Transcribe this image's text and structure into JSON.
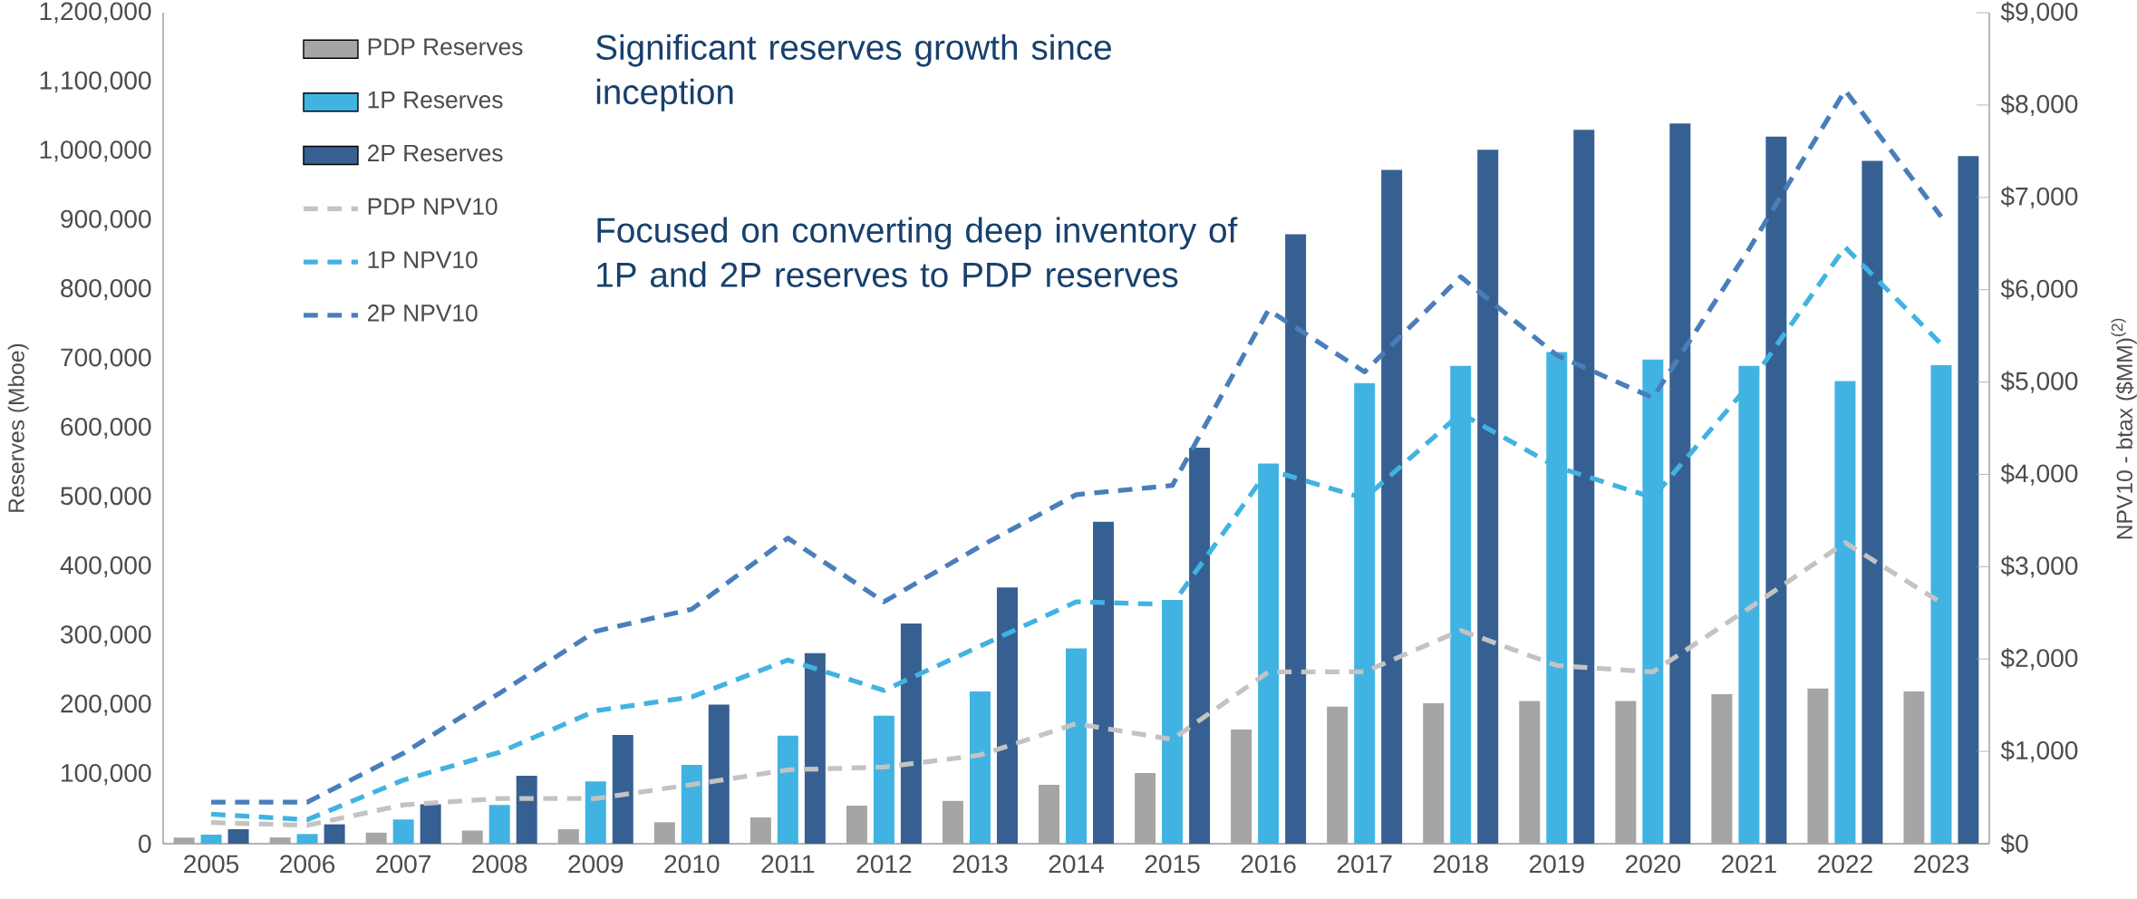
{
  "chart_data": {
    "type": "bar",
    "categories": [
      "2005",
      "2006",
      "2007",
      "2008",
      "2009",
      "2010",
      "2011",
      "2012",
      "2013",
      "2014",
      "2015",
      "2016",
      "2017",
      "2018",
      "2019",
      "2020",
      "2021",
      "2022",
      "2023"
    ],
    "series": [
      {
        "name": "PDP Reserves",
        "color": "#a5a5a5",
        "values": [
          9000,
          9000,
          16000,
          19000,
          21000,
          31000,
          38000,
          55000,
          62000,
          85000,
          102000,
          165000,
          198000,
          203000,
          206000,
          206000,
          216000,
          224000,
          220000
        ]
      },
      {
        "name": "1P Reserves",
        "color": "#41b3e2",
        "values": [
          13000,
          14000,
          35000,
          56000,
          90000,
          114000,
          156000,
          185000,
          220000,
          282000,
          352000,
          549000,
          665000,
          690000,
          710000,
          699000,
          690000,
          668000,
          691000
        ]
      },
      {
        "name": "2P Reserves",
        "color": "#366092",
        "values": [
          21000,
          28000,
          57000,
          98000,
          157000,
          201000,
          275000,
          318000,
          370000,
          465000,
          572000,
          880000,
          973000,
          1002000,
          1031000,
          1040000,
          1021000,
          986000,
          993000
        ]
      },
      {
        "name": "PDP NPV10",
        "type": "line",
        "axis": "y2",
        "color": "#c3c3c3",
        "values": [
          230,
          200,
          420,
          490,
          490,
          640,
          800,
          830,
          960,
          1300,
          1130,
          1860,
          1860,
          2310,
          1930,
          1860,
          2550,
          3260,
          2610
        ]
      },
      {
        "name": "1P NPV10",
        "type": "line",
        "axis": "y2",
        "color": "#41b3e2",
        "values": [
          320,
          260,
          690,
          990,
          1440,
          1590,
          1990,
          1660,
          2140,
          2620,
          2590,
          4050,
          3740,
          4660,
          4080,
          3750,
          4970,
          6460,
          5410
        ]
      },
      {
        "name": "2P NPV10",
        "type": "line",
        "axis": "y2",
        "color": "#4a7ebb",
        "values": [
          450,
          450,
          980,
          1630,
          2300,
          2540,
          3310,
          2620,
          3220,
          3780,
          3880,
          5780,
          5110,
          6140,
          5290,
          4830,
          6440,
          8160,
          6790
        ]
      }
    ],
    "ylabel": "Reserves (Mboe)",
    "y2label": "NPV10 - btax ($MM)$^{(2)}$",
    "ylim": [
      0,
      1200000
    ],
    "yticks": [
      0,
      {
        "value": 100000,
        "label": "100,000"
      },
      {
        "value": 200000,
        "label": "200,000"
      },
      {
        "value": 300000,
        "label": "300,000"
      },
      {
        "value": 400000,
        "label": "400,000"
      },
      {
        "value": 500000,
        "label": "500,000"
      },
      {
        "value": 600000,
        "label": "600,000"
      },
      {
        "value": 700000,
        "label": "700,000"
      },
      {
        "value": 800000,
        "label": "800,000"
      },
      {
        "value": 900000,
        "label": "900,000"
      },
      {
        "value": 1000000,
        "label": "1,000,000"
      },
      {
        "value": 1100000,
        "label": "1,100,000"
      },
      {
        "value": 1200000,
        "label": "1,200,000"
      }
    ],
    "y2lim": [
      0,
      9000
    ],
    "y2ticks": [
      {
        "value": 0,
        "label": "$0"
      },
      {
        "value": 1000,
        "label": "$1,000"
      },
      {
        "value": 2000,
        "label": "$2,000"
      },
      {
        "value": 3000,
        "label": "$3,000"
      },
      {
        "value": 4000,
        "label": "$4,000"
      },
      {
        "value": 5000,
        "label": "$5,000"
      },
      {
        "value": 6000,
        "label": "$6,000"
      },
      {
        "value": 7000,
        "label": "$7,000"
      },
      {
        "value": 8000,
        "label": "$8,000"
      },
      {
        "value": 9000,
        "label": "$9,000"
      }
    ],
    "annotations": [
      "Significant reserves growth since inception",
      "Focused on converting deep inventory of 1P and 2P reserves to PDP reserves"
    ],
    "legend": "top left",
    "line_style": "dashed",
    "marker": "none"
  }
}
